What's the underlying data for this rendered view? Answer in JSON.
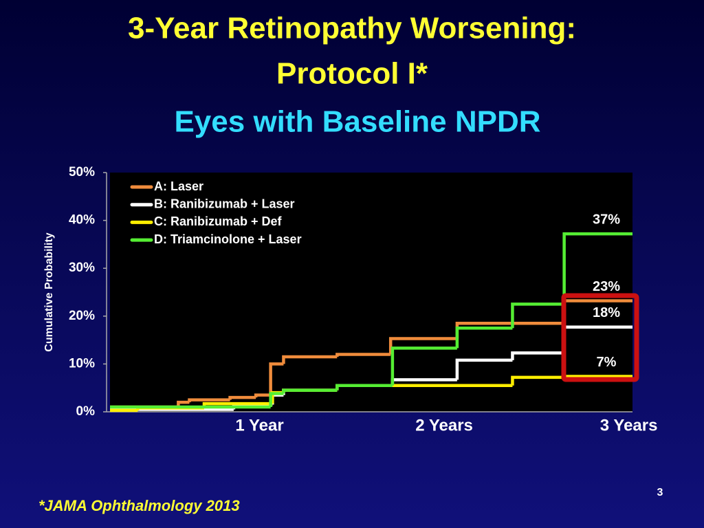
{
  "chart_data": {
    "type": "step",
    "title": [
      "3-Year Retinopathy Worsening:",
      "Protocol I*"
    ],
    "subtitle": "Eyes with Baseline NPDR",
    "y_label": "Cumulative Probability",
    "footnote": "*JAMA Ophthalmology 2013",
    "page_number": "3",
    "xlim": [
      0.19,
      3.02
    ],
    "xticks": [
      {
        "value": 1,
        "label": "1 Year"
      },
      {
        "value": 2,
        "label": "2 Years"
      },
      {
        "value": 3,
        "label": "3 Years"
      }
    ],
    "ylim": [
      0,
      50
    ],
    "yticks": [
      {
        "value": 0,
        "label": "0%"
      },
      {
        "value": 10,
        "label": "10%"
      },
      {
        "value": 20,
        "label": "20%"
      },
      {
        "value": 30,
        "label": "30%"
      },
      {
        "value": 40,
        "label": "40%"
      },
      {
        "value": 50,
        "label": "50%"
      }
    ],
    "series": [
      {
        "name": "A: Laser",
        "color": "#f08c3c",
        "x": [
          0.19,
          0.56,
          0.62,
          0.84,
          0.98,
          1.06,
          1.13,
          1.42,
          1.71,
          2.07,
          2.65
        ],
        "values": [
          1,
          2,
          2.5,
          3,
          3.5,
          10,
          11.5,
          12,
          15.3,
          18.5,
          23.2
        ],
        "value_labels": [
          null,
          null,
          null,
          null,
          null,
          null,
          null,
          null,
          null,
          null,
          "23%"
        ]
      },
      {
        "name": "B: Ranibizumab + Laser",
        "color": "#ffffff",
        "x": [
          0.19,
          0.86,
          1.07,
          1.13,
          1.42,
          1.72,
          2.07,
          2.37,
          2.65
        ],
        "values": [
          0.5,
          1.5,
          3.5,
          4.5,
          5.5,
          6.7,
          10.8,
          12.3,
          17.7
        ],
        "value_labels": [
          null,
          null,
          null,
          null,
          null,
          null,
          null,
          null,
          "18%"
        ]
      },
      {
        "name": "C: Ranibizumab + Def",
        "color": "#ffee00",
        "x": [
          0.19,
          0.34,
          0.7,
          1.07,
          1.13,
          1.42,
          2.37,
          2.65
        ],
        "values": [
          0.3,
          0.8,
          1.7,
          4,
          4.5,
          5.5,
          7.2,
          7.4
        ],
        "value_labels": [
          null,
          null,
          null,
          null,
          null,
          null,
          null,
          "7%"
        ]
      },
      {
        "name": "D: Triamcinolone + Laser",
        "color": "#55ee33",
        "x": [
          0.19,
          1.06,
          1.13,
          1.42,
          1.72,
          2.07,
          2.37,
          2.65
        ],
        "values": [
          1,
          3.8,
          4.5,
          5.5,
          13.3,
          17.5,
          22.5,
          37.2
        ],
        "value_labels": [
          null,
          null,
          null,
          null,
          null,
          null,
          null,
          "37%"
        ]
      }
    ]
  }
}
